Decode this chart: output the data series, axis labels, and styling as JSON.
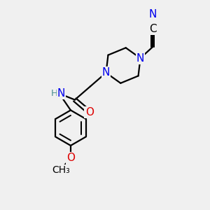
{
  "background_color": "#f0f0f0",
  "bond_color": "#000000",
  "bond_width": 1.6,
  "atom_colors": {
    "N": "#0000ee",
    "O": "#dd0000",
    "C": "#000000",
    "H": "#4a9090"
  },
  "font_size": 11,
  "font_size_small": 9.5
}
